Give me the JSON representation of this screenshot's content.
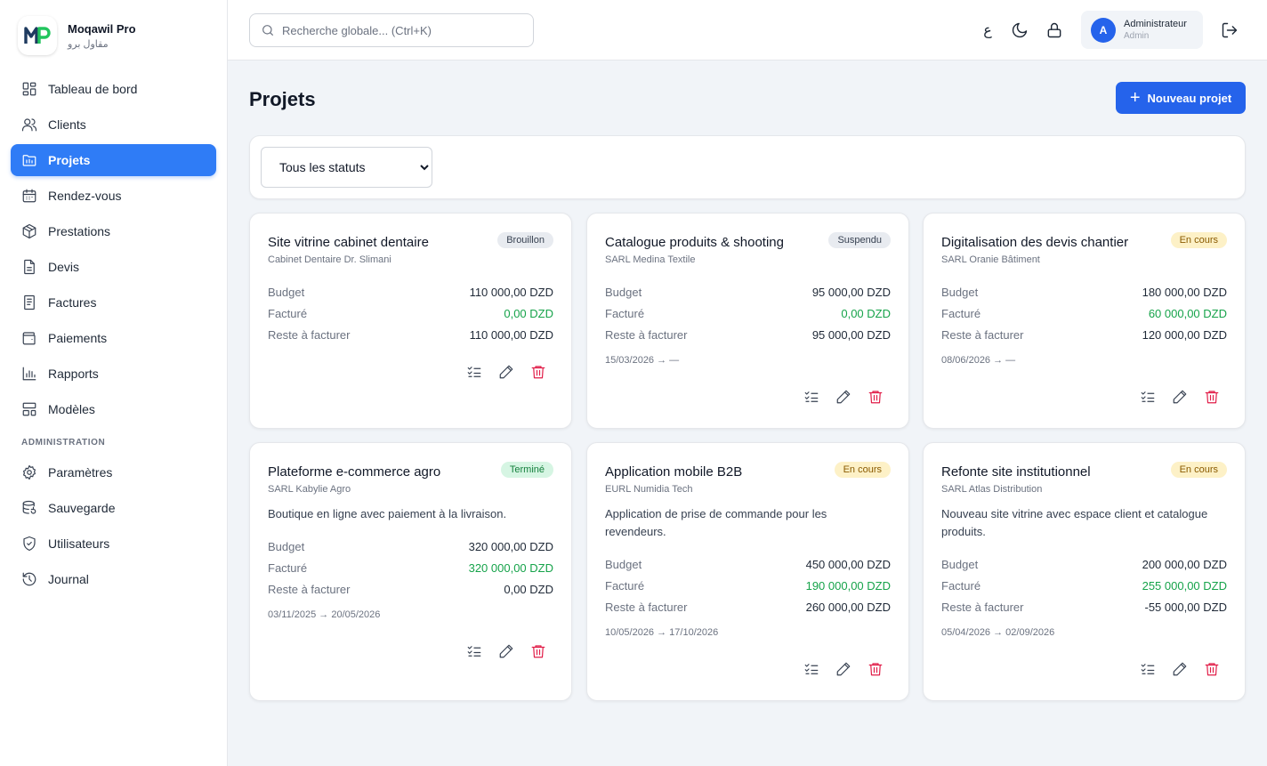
{
  "brand": {
    "name": "Moqawil Pro",
    "subtitle": "مقاول برو",
    "logo_text": "MP"
  },
  "sidebar": {
    "items": [
      {
        "label": "Tableau de bord",
        "icon": "dashboard-icon"
      },
      {
        "label": "Clients",
        "icon": "users-icon"
      },
      {
        "label": "Projets",
        "icon": "folder-icon",
        "active": true
      },
      {
        "label": "Rendez-vous",
        "icon": "calendar-icon"
      },
      {
        "label": "Prestations",
        "icon": "box-icon"
      },
      {
        "label": "Devis",
        "icon": "document-icon"
      },
      {
        "label": "Factures",
        "icon": "invoice-icon"
      },
      {
        "label": "Paiements",
        "icon": "wallet-icon"
      },
      {
        "label": "Rapports",
        "icon": "bar-chart-icon"
      },
      {
        "label": "Modèles",
        "icon": "template-icon"
      }
    ],
    "admin_section_label": "ADMINISTRATION",
    "admin_items": [
      {
        "label": "Paramètres",
        "icon": "gear-icon"
      },
      {
        "label": "Sauvegarde",
        "icon": "database-icon"
      },
      {
        "label": "Utilisateurs",
        "icon": "shield-icon"
      },
      {
        "label": "Journal",
        "icon": "history-icon"
      }
    ]
  },
  "header": {
    "search_placeholder": "Recherche globale... (Ctrl+K)",
    "lang_toggle": "ع",
    "user": {
      "initial": "A",
      "name": "Administrateur",
      "role": "Admin"
    }
  },
  "main": {
    "title": "Projets",
    "new_button_label": "Nouveau projet",
    "status_filter": {
      "selected": "Tous les statuts"
    },
    "labels": {
      "budget": "Budget",
      "invoiced": "Facturé",
      "remaining": "Reste à facturer"
    }
  },
  "projects": [
    {
      "title": "Site vitrine cabinet dentaire",
      "client": "Cabinet Dentaire Dr. Slimani",
      "status": "Brouillon",
      "description": "",
      "budget": "110 000,00 DZD",
      "invoiced": "0,00 DZD",
      "remaining": "110 000,00 DZD",
      "dates": ""
    },
    {
      "title": "Catalogue produits & shooting",
      "client": "SARL Medina Textile",
      "status": "Suspendu",
      "description": "",
      "budget": "95 000,00 DZD",
      "invoiced": "0,00 DZD",
      "remaining": "95 000,00 DZD",
      "dates": "15/03/2026 → —"
    },
    {
      "title": "Digitalisation des devis chantier",
      "client": "SARL Oranie Bâtiment",
      "status": "En cours",
      "description": "",
      "budget": "180 000,00 DZD",
      "invoiced": "60 000,00 DZD",
      "remaining": "120 000,00 DZD",
      "dates": "08/06/2026 → —"
    },
    {
      "title": "Plateforme e-commerce agro",
      "client": "SARL Kabylie Agro",
      "status": "Terminé",
      "description": "Boutique en ligne avec paiement à la livraison.",
      "budget": "320 000,00 DZD",
      "invoiced": "320 000,00 DZD",
      "remaining": "0,00 DZD",
      "dates": "03/11/2025 → 20/05/2026"
    },
    {
      "title": "Application mobile B2B",
      "client": "EURL Numidia Tech",
      "status": "En cours",
      "description": "Application de prise de commande pour les revendeurs.",
      "budget": "450 000,00 DZD",
      "invoiced": "190 000,00 DZD",
      "remaining": "260 000,00 DZD",
      "dates": "10/05/2026 → 17/10/2026"
    },
    {
      "title": "Refonte site institutionnel",
      "client": "SARL Atlas Distribution",
      "status": "En cours",
      "description": "Nouveau site vitrine avec espace client et catalogue produits.",
      "budget": "200 000,00 DZD",
      "invoiced": "255 000,00 DZD",
      "remaining": "-55 000,00 DZD",
      "dates": "05/04/2026 → 02/09/2026"
    }
  ],
  "colors": {
    "accent": "#2563eb",
    "active_nav": "#2f7cf6",
    "invoiced": "#16a34a",
    "delete": "#e11d48"
  }
}
